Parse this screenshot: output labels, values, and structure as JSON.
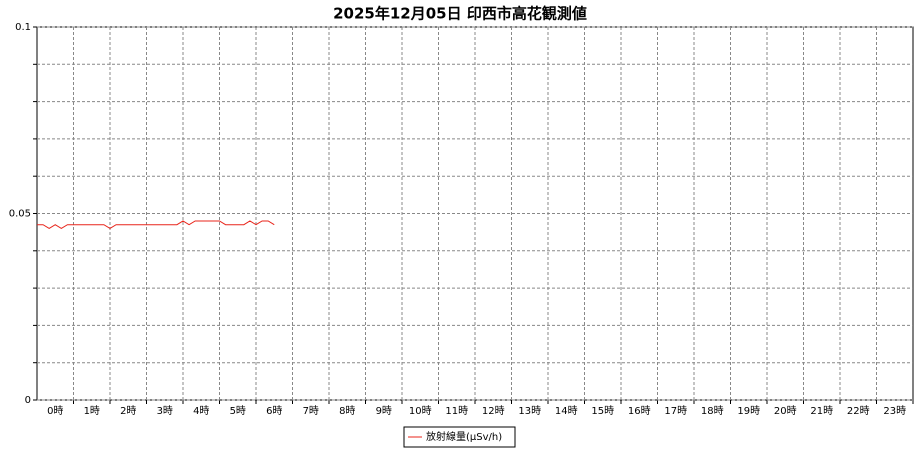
{
  "chart_data": {
    "type": "line",
    "title": "2025年12月05日 印西市高花観測値",
    "categories": [
      "0時",
      "1時",
      "2時",
      "3時",
      "4時",
      "5時",
      "6時",
      "7時",
      "8時",
      "9時",
      "10時",
      "11時",
      "12時",
      "13時",
      "14時",
      "15時",
      "16時",
      "17時",
      "18時",
      "19時",
      "20時",
      "21時",
      "22時",
      "23時"
    ],
    "xlim": [
      0,
      1440
    ],
    "x": [
      0,
      10,
      20,
      30,
      40,
      50,
      60,
      70,
      80,
      90,
      100,
      110,
      120,
      130,
      140,
      150,
      160,
      170,
      180,
      190,
      200,
      210,
      220,
      230,
      240,
      250,
      260,
      270,
      280,
      290,
      300,
      310,
      320,
      330,
      340,
      350,
      360,
      370,
      380,
      390
    ],
    "series": [
      {
        "name": "放射線量(μSv/h)",
        "color": "#e8251b",
        "values": [
          0.047,
          0.047,
          0.046,
          0.047,
          0.046,
          0.047,
          0.047,
          0.047,
          0.047,
          0.047,
          0.047,
          0.047,
          0.046,
          0.047,
          0.047,
          0.047,
          0.047,
          0.047,
          0.047,
          0.047,
          0.047,
          0.047,
          0.047,
          0.047,
          0.048,
          0.047,
          0.048,
          0.048,
          0.048,
          0.048,
          0.048,
          0.047,
          0.047,
          0.047,
          0.047,
          0.048,
          0.047,
          0.048,
          0.048,
          0.047
        ]
      }
    ],
    "ylim": [
      0,
      0.1
    ],
    "yticks": [
      0,
      0.05,
      0.1
    ],
    "yminor": [
      0.01,
      0.02,
      0.03,
      0.04,
      0.06,
      0.07,
      0.08,
      0.09
    ],
    "grid": true
  }
}
